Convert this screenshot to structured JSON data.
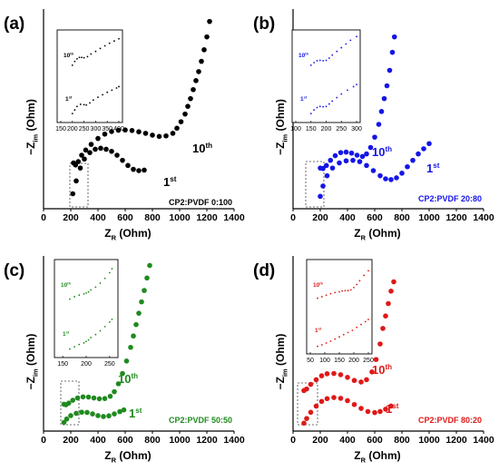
{
  "chart_data": [
    {
      "type": "scatter",
      "panel_label": "(a)",
      "color": "#000000",
      "xlabel_main": "Z",
      "xlabel_sub": "R",
      "xlabel_unit": "(Ohm)",
      "ylabel_main": "−Z",
      "ylabel_sub": "im",
      "ylabel_unit": "(Ohm)",
      "xlim": [
        0,
        1400
      ],
      "xticks": [
        "0",
        "200",
        "400",
        "600",
        "800",
        "1000",
        "1200",
        "1400"
      ],
      "annotation": "CP2:PVDF 0:100",
      "series": [
        {
          "name": "1st",
          "label_main": "1",
          "label_sup": "st",
          "x": [
            215,
            240,
            270,
            300,
            340,
            380,
            420,
            460,
            500,
            540,
            580,
            620,
            660,
            700,
            740
          ],
          "y": [
            30,
            80,
            130,
            165,
            190,
            203,
            207,
            203,
            195,
            180,
            160,
            140,
            125,
            120,
            122
          ]
        },
        {
          "name": "10th",
          "label_main": "10",
          "label_sup": "th",
          "x": [
            220,
            235,
            255,
            280,
            310,
            350,
            400,
            450,
            500,
            550,
            600,
            650,
            700,
            750,
            800,
            850,
            900,
            950,
            980,
            1010,
            1040,
            1060,
            1080,
            1100,
            1120,
            1140,
            1160,
            1180,
            1200,
            1220
          ],
          "y": [
            150,
            142,
            155,
            180,
            200,
            222,
            245,
            262,
            272,
            277,
            278,
            276,
            271,
            265,
            258,
            253,
            255,
            265,
            285,
            310,
            340,
            370,
            400,
            435,
            470,
            505,
            545,
            590,
            640,
            700
          ]
        }
      ],
      "inset": {
        "xticks": [
          "150",
          "200",
          "250",
          "300",
          "350",
          "400"
        ],
        "xlim": [
          150,
          400
        ],
        "labels": [
          {
            "main": "10",
            "sup": "th"
          },
          {
            "main": "1",
            "sup": "st"
          }
        ],
        "series": [
          {
            "x": [
              200,
              210,
              220,
              230,
              240,
              250,
              265,
              280,
              300,
              320,
              340,
              360,
              380,
              400
            ],
            "y": [
              0.15,
              0.25,
              0.32,
              0.36,
              0.36,
              0.35,
              0.38,
              0.45,
              0.52,
              0.6,
              0.67,
              0.74,
              0.8,
              0.86
            ]
          },
          {
            "x": [
              200,
              210,
              220,
              235,
              250,
              260,
              275,
              290,
              310,
              330,
              350,
              370,
              390,
              400
            ],
            "y": [
              0.1,
              0.2,
              0.3,
              0.36,
              0.35,
              0.34,
              0.4,
              0.48,
              0.56,
              0.63,
              0.7,
              0.76,
              0.82,
              0.86
            ]
          }
        ]
      }
    },
    {
      "type": "scatter",
      "panel_label": "(b)",
      "color": "#1515e8",
      "xlabel_main": "Z",
      "xlabel_sub": "R",
      "xlabel_unit": "(Ohm)",
      "ylabel_main": "−Z",
      "ylabel_sub": "im",
      "ylabel_unit": "(Ohm)",
      "xlim": [
        0,
        1400
      ],
      "xticks": [
        "0",
        "200",
        "400",
        "600",
        "800",
        "1000",
        "1200",
        "1400"
      ],
      "annotation": "CP2:PVDF 20:80",
      "series": [
        {
          "name": "1st",
          "label_main": "1",
          "label_sup": "st",
          "x": [
            200,
            220,
            250,
            290,
            340,
            390,
            440,
            490,
            540,
            590,
            640,
            680,
            720,
            760,
            800,
            840,
            880,
            920,
            960,
            1000
          ],
          "y": [
            20,
            60,
            100,
            130,
            150,
            158,
            160,
            155,
            140,
            120,
            100,
            88,
            85,
            92,
            110,
            135,
            160,
            185,
            205,
            225
          ]
        },
        {
          "name": "10th",
          "label_main": "10",
          "label_sup": "th",
          "x": [
            200,
            220,
            245,
            275,
            310,
            350,
            390,
            430,
            470,
            510,
            540,
            570,
            600,
            630,
            650,
            670,
            690,
            710,
            730,
            745
          ],
          "y": [
            130,
            128,
            140,
            160,
            178,
            190,
            192,
            188,
            180,
            175,
            185,
            210,
            250,
            300,
            350,
            400,
            450,
            510,
            580,
            640
          ]
        }
      ],
      "inset": {
        "xticks": [
          "100",
          "150",
          "200",
          "250",
          "300"
        ],
        "xlim": [
          100,
          300
        ],
        "labels": [
          {
            "main": "10",
            "sup": "th"
          },
          {
            "main": "1",
            "sup": "st"
          }
        ],
        "series": [
          {
            "x": [
              150,
              160,
              170,
              180,
              190,
              200,
              210,
              220,
              235,
              250,
              265,
              280,
              300
            ],
            "y": [
              0.15,
              0.22,
              0.27,
              0.28,
              0.27,
              0.28,
              0.34,
              0.42,
              0.52,
              0.62,
              0.72,
              0.82,
              0.92
            ]
          },
          {
            "x": [
              150,
              160,
              170,
              180,
              190,
              200,
              210,
              220,
              235,
              250,
              270,
              290,
              300
            ],
            "y": [
              0.1,
              0.2,
              0.27,
              0.3,
              0.29,
              0.3,
              0.37,
              0.45,
              0.55,
              0.65,
              0.76,
              0.86,
              0.92
            ]
          }
        ]
      }
    },
    {
      "type": "scatter",
      "panel_label": "(c)",
      "color": "#1f8a1f",
      "xlabel_main": "Z",
      "xlabel_sub": "R",
      "xlabel_unit": "(Ohm)",
      "ylabel_main": "−Z",
      "ylabel_sub": "im",
      "ylabel_unit": "(Ohm)",
      "xlim": [
        0,
        1400
      ],
      "xticks": [
        "0",
        "200",
        "400",
        "600",
        "800",
        "1000",
        "1200",
        "1400"
      ],
      "annotation": "CP2:PVDF 50:50",
      "series": [
        {
          "name": "1st",
          "label_main": "1",
          "label_sup": "st",
          "x": [
            150,
            170,
            200,
            240,
            280,
            320,
            360,
            400,
            440,
            480,
            520,
            560,
            590
          ],
          "y": [
            20,
            50,
            80,
            100,
            110,
            108,
            95,
            80,
            72,
            78,
            95,
            115,
            130
          ]
        },
        {
          "name": "10th",
          "label_main": "10",
          "label_sup": "th",
          "x": [
            150,
            165,
            185,
            215,
            250,
            290,
            330,
            370,
            410,
            450,
            490,
            520,
            550,
            580,
            610,
            640,
            660,
            680,
            700,
            720,
            740,
            760,
            780
          ],
          "y": [
            180,
            175,
            190,
            215,
            235,
            245,
            243,
            235,
            228,
            230,
            250,
            290,
            360,
            450,
            560,
            680,
            780,
            880,
            980,
            1080,
            1180,
            1290,
            1400
          ]
        }
      ],
      "inset": {
        "xticks": [
          "150",
          "200",
          "250"
        ],
        "xlim": [
          140,
          260
        ],
        "labels": [
          {
            "main": "10",
            "sup": "th"
          },
          {
            "main": "1",
            "sup": "st"
          }
        ],
        "series": [
          {
            "x": [
              165,
              175,
              185,
              195,
              200,
              205,
              210,
              220,
              230,
              240,
              250,
              255
            ],
            "y": [
              0.1,
              0.16,
              0.2,
              0.23,
              0.25,
              0.28,
              0.33,
              0.4,
              0.5,
              0.62,
              0.76,
              0.86
            ]
          },
          {
            "x": [
              165,
              175,
              185,
              195,
              200,
              205,
              210,
              220,
              230,
              240,
              250,
              255
            ],
            "y": [
              0.08,
              0.14,
              0.2,
              0.24,
              0.28,
              0.32,
              0.38,
              0.46,
              0.56,
              0.67,
              0.79,
              0.86
            ]
          }
        ]
      }
    },
    {
      "type": "scatter",
      "panel_label": "(d)",
      "color": "#e01818",
      "xlabel_main": "Z",
      "xlabel_sub": "R",
      "xlabel_unit": "(Ohm)",
      "ylabel_main": "−Z",
      "ylabel_sub": "im",
      "ylabel_unit": "(Ohm)",
      "xlim": [
        0,
        1400
      ],
      "xticks": [
        "0",
        "200",
        "400",
        "600",
        "800",
        "1000",
        "1200",
        "1400"
      ],
      "annotation": "CP2:PVDF 80:20",
      "series": [
        {
          "name": "1st",
          "label_main": "1",
          "label_sup": "st",
          "x": [
            80,
            100,
            130,
            170,
            210,
            250,
            300,
            350,
            400,
            450,
            500,
            550,
            600,
            640,
            680,
            720
          ],
          "y": [
            10,
            40,
            80,
            120,
            150,
            168,
            175,
            170,
            155,
            130,
            105,
            85,
            78,
            85,
            100,
            120
          ]
        },
        {
          "name": "10th",
          "label_main": "10",
          "label_sup": "th",
          "x": [
            80,
            100,
            130,
            170,
            210,
            250,
            300,
            350,
            400,
            450,
            500,
            540,
            580,
            610,
            640,
            660,
            680,
            700,
            720,
            740
          ],
          "y": [
            220,
            230,
            260,
            290,
            315,
            328,
            330,
            322,
            305,
            285,
            275,
            290,
            340,
            420,
            520,
            620,
            700,
            780,
            860,
            920
          ]
        }
      ],
      "inset": {
        "xticks": [
          "50",
          "100",
          "150",
          "200",
          "250"
        ],
        "xlim": [
          50,
          250
        ],
        "labels": [
          {
            "main": "10",
            "sup": "th"
          },
          {
            "main": "1",
            "sup": "st"
          }
        ],
        "series": [
          {
            "x": [
              75,
              90,
              105,
              120,
              135,
              150,
              160,
              170,
              180,
              190,
              200,
              210,
              220,
              235,
              250
            ],
            "y": [
              0.08,
              0.12,
              0.16,
              0.2,
              0.23,
              0.25,
              0.27,
              0.28,
              0.28,
              0.3,
              0.36,
              0.44,
              0.54,
              0.68,
              0.8
            ]
          },
          {
            "x": [
              75,
              90,
              105,
              120,
              135,
              150,
              165,
              180,
              195,
              210,
              225,
              240,
              250
            ],
            "y": [
              0.06,
              0.1,
              0.15,
              0.2,
              0.26,
              0.32,
              0.38,
              0.44,
              0.5,
              0.58,
              0.66,
              0.74,
              0.8
            ]
          }
        ]
      }
    }
  ]
}
